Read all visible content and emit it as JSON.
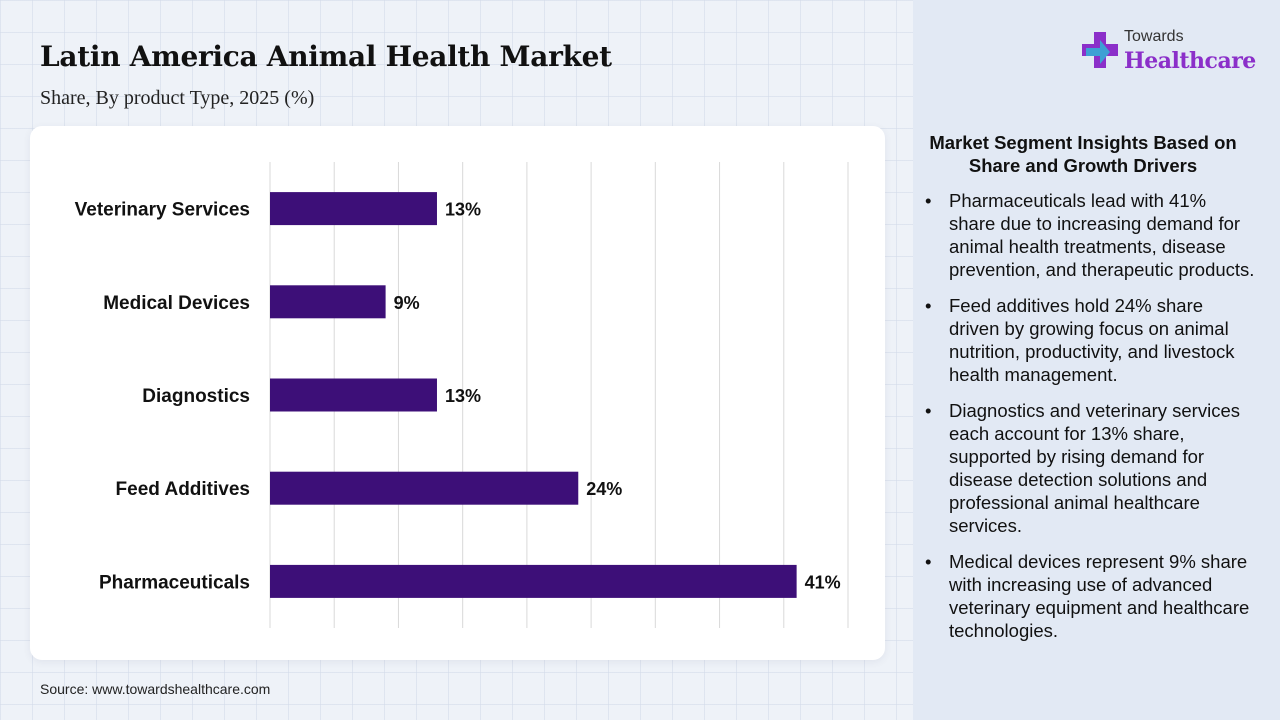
{
  "header": {
    "title": "Latin America Animal Health Market",
    "subtitle": "Share, By product Type, 2025 (%)"
  },
  "brand": {
    "top": "Towards",
    "main": "Healthcare",
    "accent_color": "#8b2fc9",
    "icon": "medical-cross-icon"
  },
  "chart_data": {
    "type": "bar",
    "orientation": "horizontal",
    "categories": [
      "Veterinary Services",
      "Medical Devices",
      "Diagnostics",
      "Feed Additives",
      "Pharmaceuticals"
    ],
    "values": [
      13,
      9,
      13,
      24,
      41
    ],
    "value_labels": [
      "13%",
      "9%",
      "13%",
      "24%",
      "41%"
    ],
    "xlim": [
      0,
      45
    ],
    "grid": true,
    "bar_color": "#3d0f78"
  },
  "source": "Source: www.towardshealthcare.com",
  "insights": {
    "title": "Market Segment Insights Based on Share and Growth Drivers",
    "items": [
      "Pharmaceuticals lead with 41% share due to increasing demand for animal health treatments, disease prevention, and therapeutic products.",
      "Feed additives hold 24% share driven by growing focus on animal nutrition, productivity, and livestock health management.",
      "Diagnostics and veterinary services each account for 13% share, supported by rising demand for disease detection solutions and professional animal healthcare services.",
      "Medical devices represent 9% share with increasing use of advanced veterinary equipment and healthcare technologies."
    ]
  }
}
